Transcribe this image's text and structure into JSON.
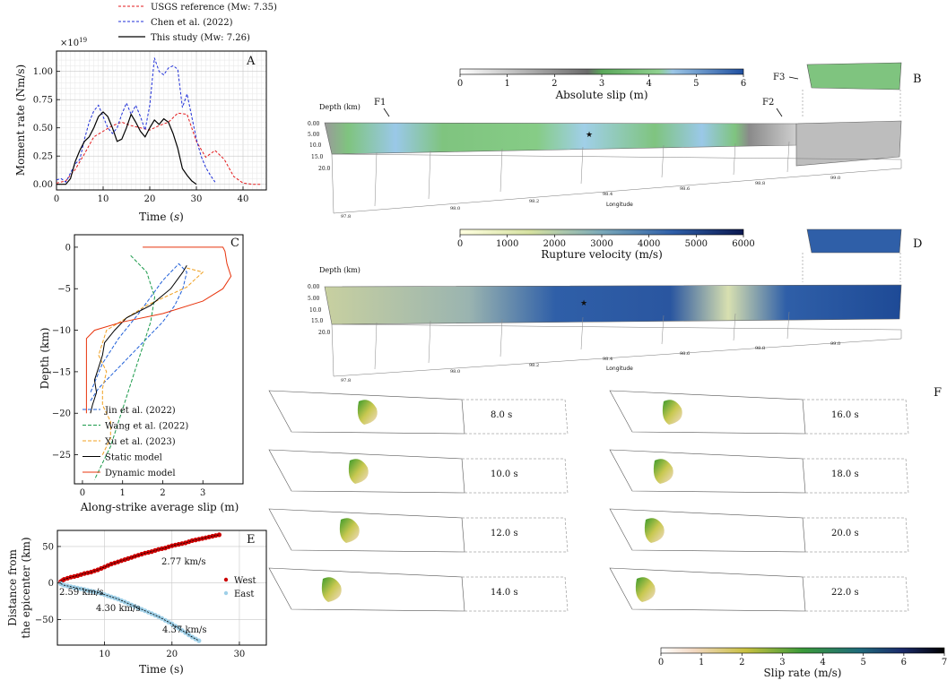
{
  "legend_A": {
    "usgs": "USGS reference (Mw: 7.35)",
    "chen": "Chen et al. (2022)",
    "this": "This study (Mw: 7.26)"
  },
  "colors": {
    "usgs": "#e31a1c",
    "chen": "#1f2fd8",
    "this": "#000000",
    "jin": "#1f5fd8",
    "wang": "#1a9a4a",
    "xu": "#f0a020",
    "static": "#000000",
    "dynamic": "#e8340c",
    "west": "#cc0000",
    "east": "#9fd0e8"
  },
  "panels": {
    "A": "A",
    "B": "B",
    "C": "C",
    "D": "D",
    "E": "E",
    "F": "F"
  },
  "chart_data": [
    {
      "id": "A",
      "type": "line",
      "xlabel": "Time (s)",
      "xlabel_main": "Time (",
      "xlabel_var": "s",
      "xlabel_tail": ")",
      "ylabel": "Moment rate (Nm/s)",
      "y_scale_label": "×10",
      "y_scale_exp": "19",
      "xlim": [
        0,
        45
      ],
      "ylim": [
        -0.05,
        1.18
      ],
      "xticks": [
        0,
        10,
        20,
        30,
        40
      ],
      "yticks": [
        0.0,
        0.25,
        0.5,
        0.75,
        1.0
      ],
      "ytick_labels": [
        "0.00",
        "0.25",
        "0.50",
        "0.75",
        "1.00"
      ],
      "grid": true,
      "series": [
        {
          "name": "USGS reference (Mw: 7.35)",
          "key": "usgs",
          "dash": "3,2",
          "x": [
            0,
            2,
            4,
            6,
            8,
            10,
            12,
            14,
            16,
            18,
            20,
            22,
            24,
            26,
            28,
            30,
            32,
            34,
            36,
            38,
            40,
            42,
            44
          ],
          "y": [
            0.01,
            0.03,
            0.13,
            0.27,
            0.42,
            0.47,
            0.52,
            0.55,
            0.52,
            0.5,
            0.48,
            0.52,
            0.55,
            0.63,
            0.62,
            0.38,
            0.24,
            0.3,
            0.22,
            0.07,
            0.01,
            0,
            0
          ]
        },
        {
          "name": "Chen et al. (2022)",
          "key": "chen",
          "dash": "3,2",
          "x": [
            0,
            1,
            2,
            3,
            4,
            5,
            6,
            7,
            8,
            9,
            10,
            11,
            12,
            13,
            14,
            15,
            16,
            17,
            18,
            19,
            20,
            21,
            22,
            23,
            24,
            25,
            26,
            27,
            28,
            29,
            30,
            31,
            32,
            33,
            34
          ],
          "y": [
            0.04,
            0.05,
            0.02,
            0.1,
            0.18,
            0.22,
            0.4,
            0.55,
            0.65,
            0.7,
            0.6,
            0.5,
            0.45,
            0.5,
            0.62,
            0.72,
            0.62,
            0.7,
            0.6,
            0.48,
            0.7,
            1.12,
            1.0,
            0.97,
            1.03,
            1.05,
            1.02,
            0.68,
            0.8,
            0.6,
            0.4,
            0.25,
            0.15,
            0.08,
            0.02
          ]
        },
        {
          "name": "This study (Mw: 7.26)",
          "key": "this",
          "dash": "",
          "x": [
            0,
            2,
            3,
            4,
            5,
            6,
            7,
            8,
            9,
            10,
            11,
            12,
            13,
            14,
            15,
            16,
            17,
            18,
            19,
            20,
            21,
            22,
            23,
            24,
            25,
            26,
            27,
            28,
            29,
            30
          ],
          "y": [
            0,
            0,
            0.05,
            0.2,
            0.3,
            0.38,
            0.42,
            0.5,
            0.6,
            0.64,
            0.6,
            0.5,
            0.38,
            0.4,
            0.5,
            0.62,
            0.55,
            0.47,
            0.42,
            0.5,
            0.57,
            0.53,
            0.58,
            0.55,
            0.45,
            0.32,
            0.14,
            0.08,
            0.03,
            0
          ]
        }
      ]
    },
    {
      "id": "C",
      "type": "line",
      "xlabel": "Along-strike average slip (m)",
      "ylabel": "Depth (km)",
      "xlim": [
        -0.2,
        4.0
      ],
      "ylim": [
        -28.5,
        1.5
      ],
      "xticks": [
        0,
        1,
        2,
        3
      ],
      "yticks": [
        0,
        -5,
        -10,
        -15,
        -20,
        -25
      ],
      "grid": false,
      "legend_position": "lower-left",
      "series": [
        {
          "name": "Jin et al. (2022)",
          "key": "jin",
          "dash": "4,2",
          "x": [
            0.2,
            0.4,
            0.8,
            1.2,
            1.6,
            2.0,
            2.3,
            2.5,
            2.6,
            2.4,
            2.0,
            1.4,
            0.9,
            0.5,
            0.2
          ],
          "y": [
            -18.5,
            -17,
            -15,
            -13,
            -11,
            -9,
            -7,
            -5,
            -3,
            -2,
            -4,
            -8,
            -11,
            -14,
            -17.5
          ]
        },
        {
          "name": "Wang et al. (2022)",
          "key": "wang",
          "dash": "4,2",
          "x": [
            1.2,
            1.6,
            1.8,
            1.7,
            1.5,
            1.3,
            1.1,
            0.9,
            0.7,
            0.5,
            0.3
          ],
          "y": [
            -1,
            -3,
            -6,
            -9,
            -12,
            -15,
            -18,
            -21,
            -24,
            -26,
            -28
          ]
        },
        {
          "name": "Xu et al. (2023)",
          "key": "xu",
          "dash": "4,2",
          "x": [
            2.6,
            3.0,
            2.6,
            1.6,
            0.6,
            0.4,
            0.6,
            0.5,
            0.5,
            0.7,
            0.7,
            0.5
          ],
          "y": [
            -2.5,
            -3,
            -4.8,
            -7,
            -10,
            -13,
            -15,
            -17,
            -19,
            -21,
            -23,
            -25
          ]
        },
        {
          "name": "Static model",
          "key": "static",
          "dash": "",
          "x": [
            2.6,
            2.5,
            2.2,
            1.7,
            1.1,
            0.8,
            0.55,
            0.5,
            0.4,
            0.3,
            0.35,
            0.25,
            0.2
          ],
          "y": [
            -2.2,
            -3,
            -5,
            -7,
            -8.5,
            -10,
            -11.5,
            -13,
            -14.5,
            -16,
            -17.5,
            -19,
            -20
          ]
        },
        {
          "name": "Dynamic model",
          "key": "dynamic",
          "dash": "",
          "x": [
            1.5,
            3.5,
            3.55,
            3.6,
            3.7,
            3.5,
            3.0,
            2.0,
            1.0,
            0.3,
            0.1,
            0.1,
            0.1
          ],
          "y": [
            0,
            0,
            -0.5,
            -2,
            -3.5,
            -5,
            -6.5,
            -8,
            -9,
            -10,
            -11,
            -15,
            -20
          ]
        }
      ]
    },
    {
      "id": "E",
      "type": "scatter",
      "xlabel": "Time (s)",
      "ylabel": "Distance from the epicenter (km)",
      "ylabel_lines": [
        "Distance from",
        "the epicenter (km)"
      ],
      "xlim": [
        3,
        34
      ],
      "ylim": [
        -85,
        72
      ],
      "xticks": [
        10,
        20,
        30
      ],
      "yticks": [
        50,
        0,
        -50
      ],
      "grid": true,
      "annotations": [
        "2.77 km/s",
        "2.59 km/s",
        "4.30 km/s",
        "4.37 km/s"
      ],
      "series": [
        {
          "name": "West",
          "key": "west",
          "x": [
            3.5,
            4,
            5,
            6,
            7,
            8,
            9,
            10,
            11,
            12,
            13,
            14,
            15,
            16,
            17,
            18,
            19,
            20,
            21,
            22,
            23,
            24,
            25,
            26,
            27
          ],
          "y": [
            2,
            5,
            8,
            10,
            13,
            15,
            18,
            22,
            26,
            29,
            32,
            35,
            38,
            41,
            43,
            46,
            48,
            51,
            53,
            55,
            58,
            60,
            62,
            64,
            66
          ]
        },
        {
          "name": "East",
          "key": "east",
          "x": [
            3.5,
            4,
            5,
            6,
            7,
            8,
            9,
            10,
            11,
            12,
            13,
            14,
            15,
            16,
            17,
            18,
            19,
            20,
            21,
            22,
            23,
            24
          ],
          "y": [
            -1,
            -3,
            -5,
            -7,
            -9,
            -11,
            -13,
            -16,
            -19,
            -22,
            -26,
            -30,
            -34,
            -38,
            -42,
            -46,
            -51,
            -56,
            -62,
            -68,
            -74,
            -79
          ]
        }
      ]
    }
  ],
  "panel_B": {
    "colorbar_label": "Absolute slip (m)",
    "colorbar_ticks": [
      "0",
      "1",
      "2",
      "3",
      "4",
      "5",
      "6"
    ],
    "depth_label": "Depth (km)",
    "depth_ticks": [
      "0.00",
      "5.00",
      "10.0",
      "15.0",
      "20.0"
    ],
    "longitude_label": "Longitude",
    "lon_ticks": [
      "97.8",
      "98.0",
      "98.2",
      "98.4",
      "98.6",
      "98.8",
      "99.0"
    ],
    "fault_labels": [
      "F1",
      "F2",
      "F3"
    ]
  },
  "panel_D": {
    "colorbar_label": "Rupture velocity (m/s)",
    "colorbar_ticks": [
      "0",
      "1000",
      "2000",
      "3000",
      "4000",
      "5000",
      "6000"
    ],
    "depth_label": "Depth (km)",
    "depth_ticks": [
      "0.00",
      "5.00",
      "10.0",
      "15.0",
      "20.0"
    ],
    "longitude_label": "Longitude",
    "lon_ticks": [
      "97.8",
      "98.0",
      "98.2",
      "98.4",
      "98.6",
      "98.8",
      "99.0"
    ]
  },
  "panel_F": {
    "left_times": [
      "8.0 s",
      "10.0 s",
      "12.0 s",
      "14.0 s"
    ],
    "right_times": [
      "16.0 s",
      "18.0 s",
      "20.0 s",
      "22.0 s"
    ],
    "colorbar_label": "Slip rate (m/s)",
    "colorbar_ticks": [
      "0",
      "1",
      "2",
      "3",
      "4",
      "5",
      "6",
      "7"
    ]
  }
}
